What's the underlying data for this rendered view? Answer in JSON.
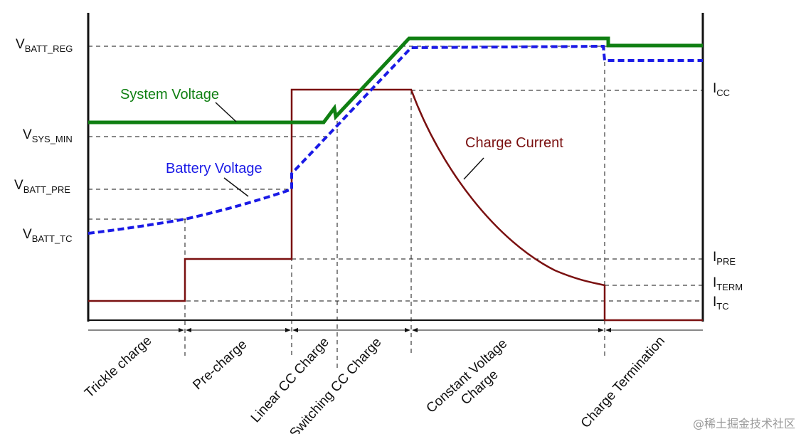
{
  "colors": {
    "system_voltage": "#0f7f12",
    "battery_voltage": "#1a1ae6",
    "charge_current": "#7a1010",
    "guides": "#111111"
  },
  "voltage_levels": {
    "vbatt_reg": {
      "main": "V",
      "sub": "BATT_REG"
    },
    "vsys_min": {
      "main": "V",
      "sub": "SYS_MIN"
    },
    "vbatt_pre": {
      "main": "V",
      "sub": "BATT_PRE"
    },
    "vbatt_tc": {
      "main": "V",
      "sub": "BATT_TC"
    }
  },
  "current_levels": {
    "icc": {
      "main": "I",
      "sub": "CC"
    },
    "ipre": {
      "main": "I",
      "sub": "PRE"
    },
    "iterm": {
      "main": "I",
      "sub": "TERM"
    },
    "itc": {
      "main": "I",
      "sub": "TC"
    }
  },
  "curves": {
    "system_voltage": "System Voltage",
    "battery_voltage": "Battery Voltage",
    "charge_current": "Charge Current"
  },
  "phases": {
    "trickle": "Trickle charge",
    "pre": "Pre-charge",
    "linear_cc": "Linear CC Charge",
    "switching_cc": "Switching CC Charge",
    "cv_line1": "Constant Voltage",
    "cv_line2": "Charge",
    "termination": "Charge Termination"
  },
  "watermark": "@稀土掘金技术社区"
}
